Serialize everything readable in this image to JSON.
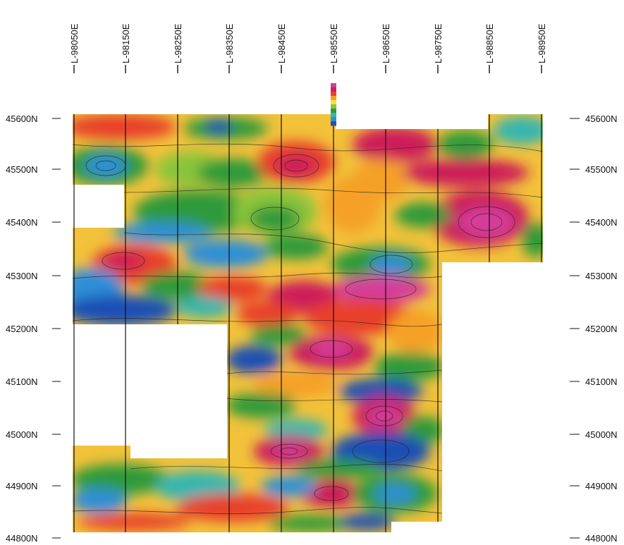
{
  "map": {
    "line_labels": [
      "L-98050E",
      "L-98150E",
      "L-98250E",
      "L-98350E",
      "L-98450E",
      "L-98550E",
      "L-98650E",
      "L-98750E",
      "L-98850E",
      "L-98950E"
    ],
    "northing_labels": [
      "45600N",
      "45500N",
      "45400N",
      "45300N",
      "45200N",
      "45100N",
      "45000N",
      "44900N",
      "44800N"
    ],
    "color_scale": [
      "#1e4fb4",
      "#2f8fd6",
      "#35b6b0",
      "#2f9a3a",
      "#8ac43a",
      "#f2e23a",
      "#f5a028",
      "#e8402a",
      "#cc1f5a",
      "#d43c9a"
    ]
  }
}
